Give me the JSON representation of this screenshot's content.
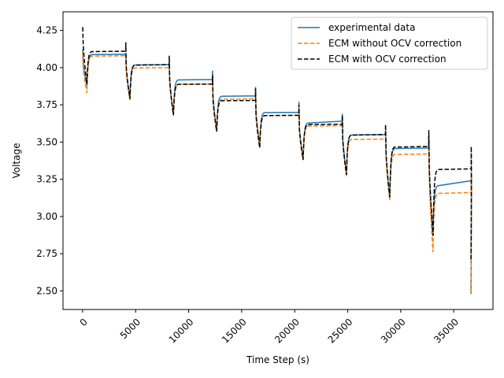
{
  "chart_data": {
    "type": "line",
    "title": "",
    "xlabel": "Time Step (s)",
    "ylabel": "Voltage",
    "xlim": [
      -1850,
      38700
    ],
    "ylim": [
      2.375,
      4.375
    ],
    "x_ticks": [
      0,
      5000,
      10000,
      15000,
      20000,
      25000,
      30000,
      35000
    ],
    "x_tick_labels": [
      "0",
      "5000",
      "10000",
      "15000",
      "20000",
      "25000",
      "30000",
      "35000"
    ],
    "x_tick_rotation": 45,
    "y_ticks": [
      2.5,
      2.75,
      3.0,
      3.25,
      3.5,
      3.75,
      4.0,
      4.25
    ],
    "y_tick_labels": [
      "2.50",
      "2.75",
      "3.00",
      "3.25",
      "3.50",
      "3.75",
      "4.00",
      "4.25"
    ],
    "grid": false,
    "legend_position": "top-right",
    "pulse_starts": [
      0,
      4060,
      8160,
      12240,
      16300,
      20390,
      24480,
      28560,
      32640,
      36640
    ],
    "series": [
      {
        "name": "experimental data",
        "color": "#1f77b4",
        "dash": "solid",
        "cycles": [
          {
            "spike": 4.12,
            "min": 3.88,
            "plateau": 4.09,
            "recovery_end": 4.09
          },
          {
            "spike": 4.1,
            "min": 3.8,
            "plateau": 4.02,
            "recovery_end": 4.02
          },
          {
            "spike": 4.0,
            "min": 3.69,
            "plateau": 3.92,
            "recovery_end": 3.92
          },
          {
            "spike": 3.98,
            "min": 3.58,
            "plateau": 3.81,
            "recovery_end": 3.81
          },
          {
            "spike": 3.87,
            "min": 3.48,
            "plateau": 3.7,
            "recovery_end": 3.7
          },
          {
            "spike": 3.77,
            "min": 3.39,
            "plateau": 3.63,
            "recovery_end": 3.64
          },
          {
            "spike": 3.69,
            "min": 3.29,
            "plateau": 3.55,
            "recovery_end": 3.55
          },
          {
            "spike": 3.6,
            "min": 3.12,
            "plateau": 3.46,
            "recovery_end": 3.46
          },
          {
            "spike": 3.54,
            "min": 2.88,
            "plateau": 3.21,
            "recovery_end": 3.24
          },
          {
            "spike": 3.3,
            "min": 2.48,
            "plateau": 2.48,
            "recovery_end": 2.48
          }
        ]
      },
      {
        "name": "ECM without OCV correction",
        "color": "#ff7f0e",
        "dash": "dashed",
        "cycles": [
          {
            "spike": 4.1,
            "min": 3.83,
            "plateau": 4.08,
            "recovery_end": 4.08
          },
          {
            "spike": 4.07,
            "min": 3.78,
            "plateau": 4.0,
            "recovery_end": 4.0
          },
          {
            "spike": 3.98,
            "min": 3.68,
            "plateau": 3.89,
            "recovery_end": 3.89
          },
          {
            "spike": 3.95,
            "min": 3.57,
            "plateau": 3.79,
            "recovery_end": 3.79
          },
          {
            "spike": 3.82,
            "min": 3.47,
            "plateau": 3.68,
            "recovery_end": 3.68
          },
          {
            "spike": 3.74,
            "min": 3.38,
            "plateau": 3.61,
            "recovery_end": 3.61
          },
          {
            "spike": 3.63,
            "min": 3.27,
            "plateau": 3.52,
            "recovery_end": 3.52
          },
          {
            "spike": 3.55,
            "min": 3.11,
            "plateau": 3.42,
            "recovery_end": 3.42
          },
          {
            "spike": 3.46,
            "min": 2.76,
            "plateau": 3.16,
            "recovery_end": 3.16
          },
          {
            "spike": 3.3,
            "min": 2.48,
            "plateau": 2.48,
            "recovery_end": 2.48
          }
        ]
      },
      {
        "name": "ECM with OCV correction",
        "color": "#000000",
        "dash": "dashed",
        "cycles": [
          {
            "spike": 4.27,
            "min": 3.89,
            "plateau": 4.11,
            "recovery_end": 4.11
          },
          {
            "spike": 4.17,
            "min": 3.79,
            "plateau": 4.02,
            "recovery_end": 4.02
          },
          {
            "spike": 4.08,
            "min": 3.68,
            "plateau": 3.89,
            "recovery_end": 3.89
          },
          {
            "spike": 3.95,
            "min": 3.57,
            "plateau": 3.78,
            "recovery_end": 3.78
          },
          {
            "spike": 3.86,
            "min": 3.46,
            "plateau": 3.68,
            "recovery_end": 3.68
          },
          {
            "spike": 3.75,
            "min": 3.38,
            "plateau": 3.62,
            "recovery_end": 3.62
          },
          {
            "spike": 3.68,
            "min": 3.28,
            "plateau": 3.55,
            "recovery_end": 3.55
          },
          {
            "spike": 3.62,
            "min": 3.13,
            "plateau": 3.47,
            "recovery_end": 3.47
          },
          {
            "spike": 3.58,
            "min": 2.87,
            "plateau": 3.32,
            "recovery_end": 3.32
          },
          {
            "spike": 3.47,
            "min": 2.7,
            "plateau": 2.7,
            "recovery_end": 2.7
          }
        ]
      }
    ]
  }
}
